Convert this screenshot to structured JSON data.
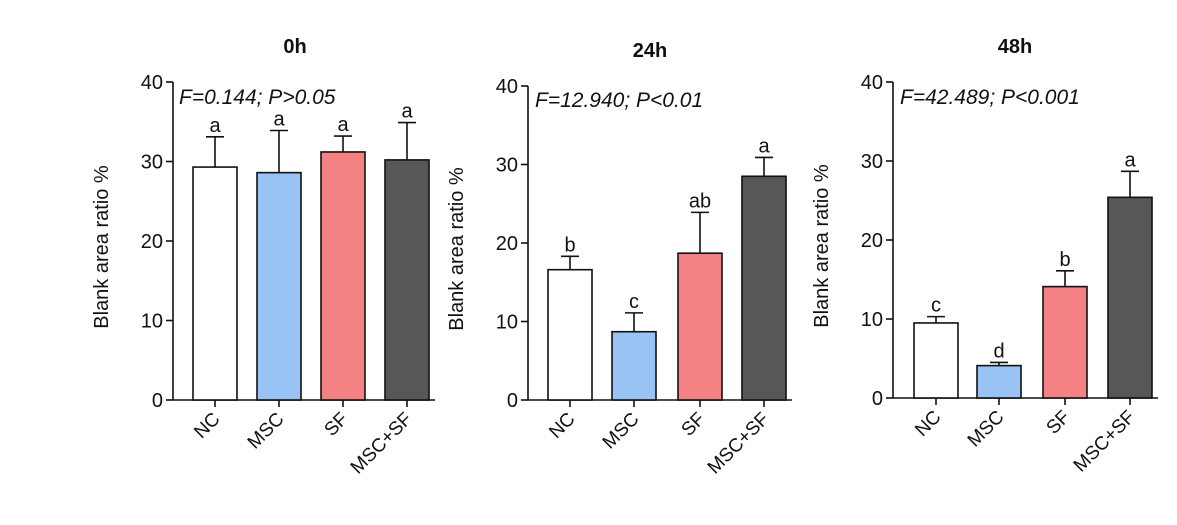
{
  "colors": {
    "NC": "#ffffff",
    "MSC": "#99c2f5",
    "SF": "#f48282",
    "MSC+SF": "#575757",
    "axis": "#111111"
  },
  "chart_data": [
    {
      "type": "bar",
      "title": "0h",
      "annotation": "F=0.144;  P>0.05",
      "ylabel": "Blank area ratio %",
      "ylim": [
        0,
        40
      ],
      "yticks": [
        "0",
        "10",
        "20",
        "30",
        "40"
      ],
      "categories": [
        "NC",
        "MSC",
        "SF",
        "MSC+SF"
      ],
      "values": [
        29.3,
        28.6,
        31.2,
        30.2
      ],
      "errors": [
        3.8,
        5.3,
        2.0,
        4.7
      ],
      "letters": [
        "a",
        "a",
        "a",
        "a"
      ]
    },
    {
      "type": "bar",
      "title": "24h",
      "annotation": "F=12.940;  P<0.01",
      "ylabel": "Blank area ratio %",
      "ylim": [
        0,
        40
      ],
      "yticks": [
        "0",
        "10",
        "20",
        "30",
        "40"
      ],
      "categories": [
        "NC",
        "MSC",
        "SF",
        "MSC+SF"
      ],
      "values": [
        16.6,
        8.7,
        18.7,
        28.5
      ],
      "errors": [
        1.7,
        2.4,
        5.2,
        2.4
      ],
      "letters": [
        "b",
        "c",
        "ab",
        "a"
      ]
    },
    {
      "type": "bar",
      "title": "48h",
      "annotation": "F=42.489; P<0.001",
      "ylabel": "Blank area ratio %",
      "ylim": [
        0,
        40
      ],
      "yticks": [
        "0",
        "10",
        "20",
        "30",
        "40"
      ],
      "categories": [
        "NC",
        "MSC",
        "SF",
        "MSC+SF"
      ],
      "values": [
        9.5,
        4.1,
        14.1,
        25.4
      ],
      "errors": [
        0.8,
        0.4,
        2.0,
        3.3
      ],
      "letters": [
        "c",
        "d",
        "b",
        "a"
      ]
    }
  ]
}
